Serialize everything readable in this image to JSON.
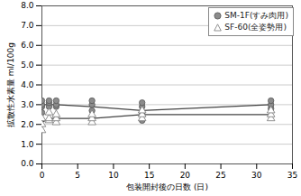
{
  "chart_data": {
    "type": "scatter",
    "x_label": "包装開封後の日数 (日)",
    "y_label": "拡散性水素量 ml/100g",
    "xlim": [
      0,
      35
    ],
    "xticks": [
      0,
      5,
      10,
      15,
      20,
      25,
      30,
      35
    ],
    "ylim": [
      0,
      8
    ],
    "yticks": [
      {
        "value": 0,
        "label": "0.0"
      },
      {
        "value": 1,
        "label": "1.0"
      },
      {
        "value": 2,
        "label": "2.0"
      },
      {
        "value": 3,
        "label": "3.0"
      },
      {
        "value": 4,
        "label": "4.0"
      },
      {
        "value": 5,
        "label": "5.0"
      },
      {
        "value": 6,
        "label": "6.0"
      },
      {
        "value": 7,
        "label": "7.0"
      },
      {
        "value": 8,
        "label": "8.0"
      }
    ],
    "grid": true,
    "legend": "top-right",
    "series": [
      {
        "name": "SM-1F(すみ肉用)",
        "color": "#8c8c8c",
        "marker": "circle",
        "x": [
          0,
          0,
          0,
          0,
          1,
          1,
          1,
          2,
          2,
          2,
          7,
          7,
          7,
          14,
          14,
          14,
          14,
          32,
          32,
          32
        ],
        "values": [
          2.6,
          2.9,
          3.0,
          3.2,
          2.9,
          3.1,
          3.2,
          2.9,
          3.0,
          3.2,
          2.7,
          3.0,
          3.2,
          2.2,
          2.6,
          2.9,
          3.1,
          2.8,
          3.0,
          3.2
        ],
        "line_x": [
          0,
          1,
          2,
          7,
          14,
          32
        ],
        "line_values": [
          3.0,
          3.0,
          3.0,
          2.9,
          2.7,
          3.0
        ]
      },
      {
        "name": "SF-60(全姿勢用)",
        "color": "#777777",
        "marker": "triangle",
        "x": [
          0,
          0,
          0,
          1,
          1,
          1,
          2,
          2,
          2,
          7,
          7,
          7,
          14,
          14,
          14,
          32,
          32,
          32
        ],
        "values": [
          1.7,
          2.0,
          2.3,
          2.2,
          2.3,
          2.6,
          2.1,
          2.3,
          2.5,
          2.1,
          2.3,
          2.5,
          2.3,
          2.5,
          2.7,
          2.3,
          2.5,
          2.7
        ],
        "line_x": [
          0,
          1,
          2,
          7,
          14,
          32
        ],
        "line_values": [
          2.1,
          2.3,
          2.3,
          2.3,
          2.5,
          2.5
        ]
      }
    ]
  }
}
